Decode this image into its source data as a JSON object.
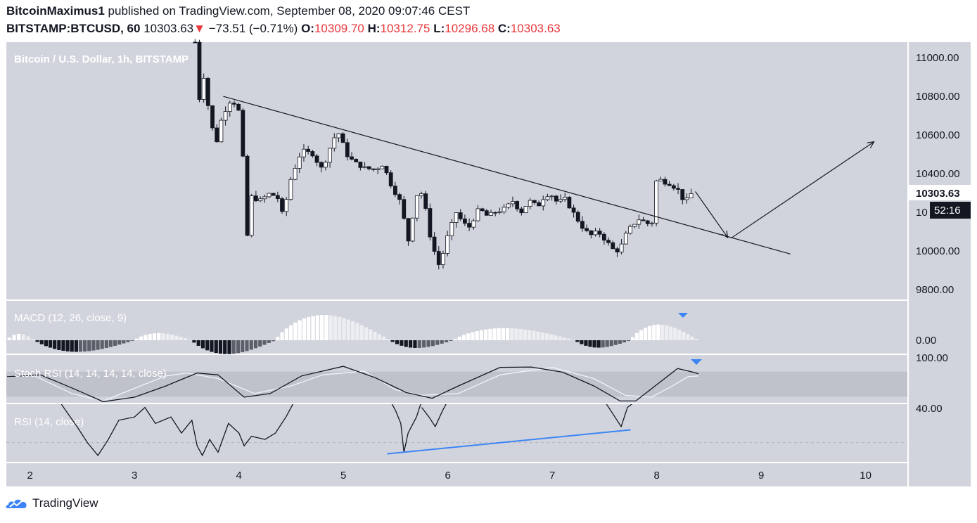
{
  "header": {
    "author": "BitcoinMaximus1",
    "published": "published on TradingView.com, September 08, 2020 09:07:46 CEST",
    "symbol": "BITSTAMP:BTCUSD, 60",
    "last": "10303.63",
    "change_arrow": "▼",
    "change": "−73.51 (−0.71%)",
    "o_label": "O:",
    "o": "10309.70",
    "h_label": "H:",
    "h": "10312.75",
    "l_label": "L:",
    "l": "10296.68",
    "c_label": "C:",
    "c": "10303.63"
  },
  "colors": {
    "pane_bg": "#d1d4dc",
    "stoch_band": "#bfc2ca",
    "up_candle": "#ffffff",
    "down_candle": "#131722",
    "trend_line": "#131722",
    "rsi_trend_line": "#3d85f5",
    "price_tag_bg": "#ffffff",
    "countdown_bg": "#131722",
    "signal_marker": "#3d85f5"
  },
  "footer": {
    "brand": "TradingView",
    "logo_icon": "tradingview-cloud-icon"
  },
  "chart_data": [
    {
      "type": "candlestick",
      "title": "Bitcoin / U.S. Dollar, 1h, BITSTAMP",
      "ylim": [
        9750,
        11080
      ],
      "y_ticks": [
        11000,
        10800,
        10600,
        10400,
        10000,
        9800
      ],
      "y_tick_labels": [
        "11000.00",
        "10800.00",
        "10600.00",
        "10400.00",
        "10000.00",
        "9800.00"
      ],
      "partial_tick_label": "10",
      "x_ticks": [
        2,
        3,
        4,
        5,
        6,
        7,
        8,
        9,
        10
      ],
      "x_tick_labels": [
        "2",
        "3",
        "4",
        "5",
        "6",
        "7",
        "8",
        "9",
        "10"
      ],
      "xlim": [
        1.78,
        10.4
      ],
      "last_price_label": "10303.63",
      "countdown_label": "52:16",
      "anchors": [
        [
          3.58,
          11080
        ],
        [
          3.62,
          10780
        ],
        [
          3.65,
          10950
        ],
        [
          3.72,
          10700
        ],
        [
          3.78,
          10550
        ],
        [
          3.84,
          10700
        ],
        [
          3.92,
          10780
        ],
        [
          3.97,
          10760
        ],
        [
          4.03,
          10680
        ],
        [
          4.05,
          10200
        ],
        [
          4.08,
          10080
        ],
        [
          4.12,
          10280
        ],
        [
          4.2,
          10260
        ],
        [
          4.3,
          10300
        ],
        [
          4.38,
          10270
        ],
        [
          4.42,
          10180
        ],
        [
          4.5,
          10380
        ],
        [
          4.6,
          10520
        ],
        [
          4.72,
          10500
        ],
        [
          4.78,
          10420
        ],
        [
          4.84,
          10480
        ],
        [
          4.9,
          10580
        ],
        [
          4.96,
          10610
        ],
        [
          5.03,
          10500
        ],
        [
          5.1,
          10460
        ],
        [
          5.2,
          10430
        ],
        [
          5.3,
          10420
        ],
        [
          5.38,
          10450
        ],
        [
          5.45,
          10350
        ],
        [
          5.55,
          10250
        ],
        [
          5.62,
          10050
        ],
        [
          5.7,
          10290
        ],
        [
          5.76,
          10300
        ],
        [
          5.84,
          10050
        ],
        [
          5.92,
          9920
        ],
        [
          6.0,
          10080
        ],
        [
          6.08,
          10200
        ],
        [
          6.14,
          10150
        ],
        [
          6.2,
          10120
        ],
        [
          6.3,
          10220
        ],
        [
          6.38,
          10180
        ],
        [
          6.45,
          10200
        ],
        [
          6.55,
          10220
        ],
        [
          6.62,
          10260
        ],
        [
          6.7,
          10200
        ],
        [
          6.78,
          10260
        ],
        [
          6.86,
          10230
        ],
        [
          6.92,
          10280
        ],
        [
          6.98,
          10300
        ],
        [
          7.05,
          10250
        ],
        [
          7.12,
          10270
        ],
        [
          7.2,
          10200
        ],
        [
          7.28,
          10130
        ],
        [
          7.36,
          10080
        ],
        [
          7.44,
          10100
        ],
        [
          7.52,
          10050
        ],
        [
          7.58,
          10010
        ],
        [
          7.64,
          10000
        ],
        [
          7.7,
          10080
        ],
        [
          7.76,
          10130
        ],
        [
          7.84,
          10170
        ],
        [
          7.9,
          10140
        ],
        [
          7.96,
          10150
        ],
        [
          8.0,
          10380
        ],
        [
          8.06,
          10360
        ],
        [
          8.12,
          10350
        ],
        [
          8.2,
          10320
        ],
        [
          8.27,
          10250
        ],
        [
          8.35,
          10310
        ]
      ],
      "annotations": {
        "trendline": [
          [
            3.85,
            10800
          ],
          [
            9.28,
            9985
          ]
        ],
        "projection_down": [
          [
            8.37,
            10308
          ],
          [
            8.68,
            10070
          ]
        ],
        "projection_up": [
          [
            8.72,
            10070
          ],
          [
            10.08,
            10565
          ]
        ]
      }
    },
    {
      "type": "histogram",
      "title": "MACD (12, 26, close, 9)",
      "y_tick_labels": [
        "0.00"
      ],
      "segments": [
        {
          "x0": 1.78,
          "x1": 2.05,
          "amp": 0.25,
          "dir": 1
        },
        {
          "x0": 2.05,
          "x1": 3.0,
          "amp": 0.75,
          "dir": -1
        },
        {
          "x0": 3.0,
          "x1": 3.55,
          "amp": 0.28,
          "dir": 1
        },
        {
          "x0": 3.55,
          "x1": 4.35,
          "amp": 0.9,
          "dir": -1
        },
        {
          "x0": 4.35,
          "x1": 5.45,
          "amp": 1.0,
          "dir": 1
        },
        {
          "x0": 5.45,
          "x1": 6.05,
          "amp": 0.5,
          "dir": -1
        },
        {
          "x0": 6.05,
          "x1": 7.22,
          "amp": 0.48,
          "dir": 1
        },
        {
          "x0": 7.22,
          "x1": 7.75,
          "amp": 0.48,
          "dir": -1
        },
        {
          "x0": 7.75,
          "x1": 8.4,
          "amp": 0.62,
          "dir": 1
        }
      ]
    },
    {
      "type": "line",
      "title": "Stoch RSI (14, 14, 14, 14, close)",
      "y_tick_labels": [
        "100.00"
      ],
      "ylim": [
        0,
        100
      ],
      "band": [
        20,
        80
      ],
      "series": [
        {
          "color": "#131722",
          "points": [
            [
              1.78,
              70
            ],
            [
              2.1,
              75
            ],
            [
              2.4,
              40
            ],
            [
              2.7,
              3
            ],
            [
              3.0,
              15
            ],
            [
              3.3,
              45
            ],
            [
              3.6,
              80
            ],
            [
              3.8,
              75
            ],
            [
              4.05,
              15
            ],
            [
              4.3,
              25
            ],
            [
              4.6,
              72
            ],
            [
              5.0,
              98
            ],
            [
              5.3,
              68
            ],
            [
              5.6,
              28
            ],
            [
              5.85,
              12
            ],
            [
              6.1,
              45
            ],
            [
              6.5,
              95
            ],
            [
              6.8,
              96
            ],
            [
              7.1,
              82
            ],
            [
              7.4,
              45
            ],
            [
              7.65,
              5
            ],
            [
              7.8,
              5
            ],
            [
              8.2,
              92
            ],
            [
              8.35,
              82
            ],
            [
              8.4,
              78
            ]
          ]
        },
        {
          "color": "#f0f3fa",
          "points": [
            [
              1.78,
              68
            ],
            [
              2.0,
              78
            ],
            [
              2.4,
              25
            ],
            [
              2.7,
              5
            ],
            [
              3.1,
              50
            ],
            [
              3.3,
              72
            ],
            [
              3.5,
              80
            ],
            [
              3.8,
              65
            ],
            [
              4.15,
              25
            ],
            [
              4.5,
              45
            ],
            [
              4.8,
              75
            ],
            [
              5.2,
              85
            ],
            [
              5.5,
              35
            ],
            [
              5.75,
              20
            ],
            [
              6.1,
              25
            ],
            [
              6.5,
              75
            ],
            [
              7.0,
              95
            ],
            [
              7.4,
              65
            ],
            [
              7.7,
              20
            ],
            [
              7.95,
              15
            ],
            [
              8.15,
              45
            ],
            [
              8.3,
              70
            ],
            [
              8.4,
              72
            ]
          ]
        }
      ],
      "marker": [
        8.38,
        100
      ]
    },
    {
      "type": "line",
      "title": "RSI (14, close)",
      "y_tick_labels": [
        "40.00"
      ],
      "ylim": [
        24,
        42
      ],
      "series": [
        {
          "color": "#131722",
          "points": [
            [
              2.3,
              42
            ],
            [
              2.45,
              35
            ],
            [
              2.55,
              30
            ],
            [
              2.65,
              26
            ],
            [
              2.75,
              31
            ],
            [
              2.85,
              37
            ],
            [
              3.0,
              38
            ],
            [
              3.1,
              41
            ],
            [
              3.2,
              36
            ],
            [
              3.35,
              38
            ],
            [
              3.45,
              33
            ],
            [
              3.55,
              37
            ],
            [
              3.6,
              29
            ],
            [
              3.65,
              26
            ],
            [
              3.72,
              31
            ],
            [
              3.8,
              27
            ],
            [
              3.9,
              36
            ],
            [
              4.0,
              33
            ],
            [
              4.05,
              29
            ],
            [
              4.12,
              32
            ],
            [
              4.25,
              31
            ],
            [
              4.35,
              33
            ],
            [
              4.45,
              38
            ],
            [
              4.55,
              44
            ]
          ]
        },
        {
          "color": "#131722",
          "points": [
            [
              5.45,
              43
            ],
            [
              5.5,
              40
            ],
            [
              5.55,
              36
            ],
            [
              5.58,
              27
            ],
            [
              5.62,
              33
            ],
            [
              5.7,
              38
            ],
            [
              5.75,
              43
            ]
          ]
        },
        {
          "color": "#131722",
          "points": [
            [
              5.75,
              41
            ],
            [
              5.82,
              38
            ],
            [
              5.88,
              35
            ],
            [
              5.95,
              40
            ],
            [
              6.0,
              43
            ]
          ]
        },
        {
          "color": "#131722",
          "points": [
            [
              7.52,
              42
            ],
            [
              7.58,
              39
            ],
            [
              7.62,
              37
            ],
            [
              7.66,
              35
            ],
            [
              7.72,
              41
            ],
            [
              7.8,
              43
            ]
          ]
        }
      ],
      "trendline": [
        [
          5.42,
          26.5
        ],
        [
          7.75,
          34
        ]
      ],
      "reference_level": 30
    }
  ]
}
